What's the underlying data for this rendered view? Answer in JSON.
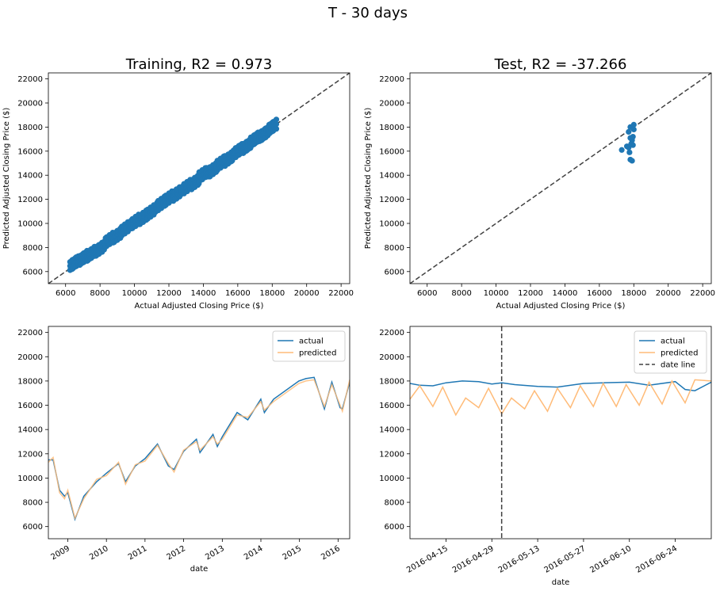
{
  "figure": {
    "suptitle": "T - 30 days",
    "colors": {
      "actual": "#1f77b4",
      "predicted": "#ffbb78",
      "diagonal": "#404040",
      "frame": "#000000"
    }
  },
  "chart_data": [
    {
      "type": "scatter",
      "title": "Training, R2 = 0.973",
      "xlabel": "Actual Adjusted Closing Price ($)",
      "ylabel": "Predicted Adjusted Closing Price ($)",
      "xlim": [
        5000,
        22500
      ],
      "ylim": [
        5000,
        22500
      ],
      "xticks": [
        6000,
        8000,
        10000,
        12000,
        14000,
        16000,
        18000,
        20000,
        22000
      ],
      "yticks": [
        6000,
        8000,
        10000,
        12000,
        14000,
        16000,
        18000,
        20000,
        22000
      ],
      "reference_line": "y = x (dashed)",
      "series": [
        {
          "x": [
            6500,
            7000,
            7500,
            8000,
            8500,
            9000,
            9500,
            10000,
            10500,
            11000,
            11500,
            12000,
            12500,
            13000,
            13500,
            14000,
            14500,
            15000,
            15500,
            16000,
            16500,
            17000,
            17500,
            18000
          ],
          "y": [
            6700,
            7100,
            7500,
            7900,
            8600,
            9000,
            9600,
            10100,
            10500,
            11000,
            11600,
            12100,
            12500,
            13000,
            13400,
            14100,
            14400,
            15000,
            15400,
            16000,
            16400,
            17000,
            17400,
            18000
          ]
        }
      ]
    },
    {
      "type": "scatter",
      "title": "Test, R2 = -37.266",
      "xlabel": "Actual Adjusted Closing Price ($)",
      "ylabel": "Predicted Adjusted Closing Price ($)",
      "xlim": [
        5000,
        22500
      ],
      "ylim": [
        5000,
        22500
      ],
      "xticks": [
        6000,
        8000,
        10000,
        12000,
        14000,
        16000,
        18000,
        20000,
        22000
      ],
      "yticks": [
        6000,
        8000,
        10000,
        12000,
        14000,
        16000,
        18000,
        20000,
        22000
      ],
      "reference_line": "y = x (dashed)",
      "series": [
        {
          "x": [
            17300,
            17600,
            17700,
            17800,
            17800,
            17900,
            17950,
            18000,
            17700,
            17850,
            17750,
            17900,
            18000,
            17950,
            17800
          ],
          "y": [
            16100,
            16400,
            17600,
            18000,
            15300,
            16900,
            17200,
            18200,
            16300,
            16600,
            15900,
            15200,
            17800,
            16500,
            17100
          ]
        }
      ]
    },
    {
      "type": "line",
      "title": "",
      "xlabel": "date",
      "ylabel": "",
      "xlim": [
        "2008-07-01",
        "2016-04-20"
      ],
      "ylim": [
        5000,
        22500
      ],
      "xticks": [
        "2009",
        "2010",
        "2011",
        "2012",
        "2013",
        "2014",
        "2015",
        "2016"
      ],
      "yticks": [
        6000,
        8000,
        10000,
        12000,
        14000,
        16000,
        18000,
        20000,
        22000
      ],
      "legend": "top-right",
      "series": [
        {
          "name": "actual",
          "x": [
            "2008-07-01",
            "2008-08-15",
            "2008-10-15",
            "2008-12-01",
            "2009-01-01",
            "2009-03-09",
            "2009-06-01",
            "2009-10-01",
            "2010-01-01",
            "2010-04-26",
            "2010-07-01",
            "2010-10-01",
            "2011-01-01",
            "2011-04-29",
            "2011-08-10",
            "2011-10-03",
            "2012-01-01",
            "2012-05-01",
            "2012-06-04",
            "2012-10-05",
            "2012-11-15",
            "2013-01-01",
            "2013-05-21",
            "2013-08-30",
            "2013-12-31",
            "2014-02-03",
            "2014-05-01",
            "2014-12-26",
            "2015-03-02",
            "2015-05-19",
            "2015-08-25",
            "2015-11-03",
            "2016-01-20",
            "2016-02-11",
            "2016-04-20"
          ],
          "y": [
            11500,
            11500,
            9000,
            8500,
            8800,
            6600,
            8500,
            9700,
            10400,
            11200,
            9700,
            11000,
            11600,
            12800,
            11000,
            10700,
            12200,
            13200,
            12100,
            13600,
            12600,
            13400,
            15400,
            14800,
            16500,
            15400,
            16500,
            18000,
            18200,
            18300,
            15700,
            17900,
            15800,
            15700,
            17900
          ]
        },
        {
          "name": "predicted",
          "x": [
            "2008-07-01",
            "2008-08-15",
            "2008-10-15",
            "2008-12-01",
            "2009-01-01",
            "2009-03-09",
            "2009-06-01",
            "2009-10-01",
            "2010-01-01",
            "2010-04-26",
            "2010-07-01",
            "2010-10-01",
            "2011-01-01",
            "2011-04-29",
            "2011-08-10",
            "2011-10-03",
            "2012-01-01",
            "2012-05-01",
            "2012-06-04",
            "2012-10-05",
            "2012-11-15",
            "2013-01-01",
            "2013-05-21",
            "2013-08-30",
            "2013-12-31",
            "2014-02-03",
            "2014-05-01",
            "2014-12-26",
            "2015-03-02",
            "2015-05-19",
            "2015-08-25",
            "2015-11-03",
            "2016-01-20",
            "2016-02-11",
            "2016-04-20"
          ],
          "y": [
            11300,
            11700,
            8800,
            8300,
            9000,
            6700,
            8300,
            9900,
            10200,
            11300,
            9500,
            11100,
            11400,
            12700,
            11200,
            10500,
            12300,
            13000,
            12300,
            13400,
            12800,
            13200,
            15200,
            15000,
            16300,
            15600,
            16300,
            17800,
            18000,
            18100,
            15900,
            17700,
            16000,
            15500,
            18100
          ]
        }
      ]
    },
    {
      "type": "line",
      "title": "",
      "xlabel": "date",
      "ylabel": "",
      "xlim": [
        "2016-04-04",
        "2016-07-05"
      ],
      "ylim": [
        5000,
        22500
      ],
      "xticks": [
        "2016-04-15",
        "2016-04-29",
        "2016-05-13",
        "2016-05-27",
        "2016-06-10",
        "2016-06-24"
      ],
      "yticks": [
        6000,
        8000,
        10000,
        12000,
        14000,
        16000,
        18000,
        20000,
        22000
      ],
      "legend": "top-right",
      "date_line": "2016-05-02",
      "series": [
        {
          "name": "actual",
          "x": [
            "2016-04-04",
            "2016-04-07",
            "2016-04-11",
            "2016-04-15",
            "2016-04-20",
            "2016-04-25",
            "2016-04-29",
            "2016-05-02",
            "2016-05-06",
            "2016-05-13",
            "2016-05-19",
            "2016-05-27",
            "2016-06-02",
            "2016-06-10",
            "2016-06-16",
            "2016-06-24",
            "2016-06-27",
            "2016-06-30",
            "2016-07-05"
          ],
          "y": [
            17800,
            17650,
            17600,
            17850,
            18000,
            17950,
            17750,
            17850,
            17700,
            17550,
            17500,
            17800,
            17850,
            17900,
            17650,
            17950,
            17300,
            17200,
            17900
          ]
        },
        {
          "name": "predicted",
          "x": [
            "2016-04-04",
            "2016-04-07",
            "2016-04-11",
            "2016-04-14",
            "2016-04-18",
            "2016-04-21",
            "2016-04-25",
            "2016-04-28",
            "2016-05-02",
            "2016-05-05",
            "2016-05-09",
            "2016-05-12",
            "2016-05-16",
            "2016-05-19",
            "2016-05-23",
            "2016-05-26",
            "2016-05-30",
            "2016-06-02",
            "2016-06-06",
            "2016-06-09",
            "2016-06-13",
            "2016-06-16",
            "2016-06-20",
            "2016-06-23",
            "2016-06-27",
            "2016-06-30",
            "2016-07-05"
          ],
          "y": [
            16500,
            17600,
            15900,
            17500,
            15200,
            16600,
            15800,
            17400,
            15300,
            16600,
            15700,
            17200,
            15500,
            17400,
            15800,
            17600,
            15900,
            17800,
            15900,
            17700,
            16000,
            17900,
            16100,
            18000,
            16200,
            18100,
            18000
          ]
        },
        {
          "name": "date line",
          "style": "dashed"
        }
      ]
    }
  ]
}
